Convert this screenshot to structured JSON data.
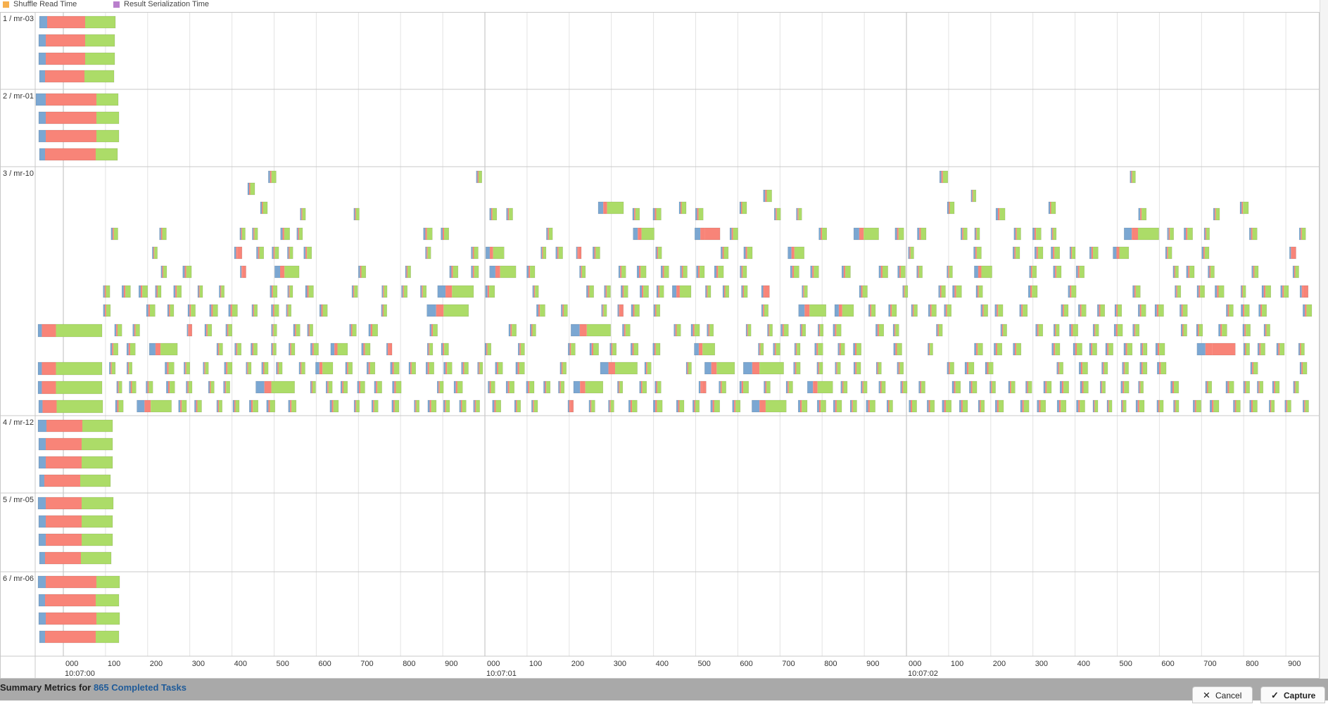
{
  "legend": [
    {
      "label": "Shuffle Read Time",
      "color": "#f6b04e"
    },
    {
      "label": "Result Serialization Time",
      "color": "#b97fcc"
    }
  ],
  "executors": [
    {
      "label": "1 / mr-03"
    },
    {
      "label": "2 / mr-01"
    },
    {
      "label": "3 / mr-10"
    },
    {
      "label": "4 / mr-12"
    },
    {
      "label": "5 / mr-05"
    },
    {
      "label": "6 / mr-06"
    }
  ],
  "axis": {
    "tick_labels": [
      "000",
      "100",
      "200",
      "300",
      "400",
      "500",
      "600",
      "700",
      "800",
      "900",
      "000",
      "100",
      "200",
      "300",
      "400",
      "500",
      "600",
      "700",
      "800",
      "900",
      "000",
      "100",
      "200",
      "300",
      "400",
      "500",
      "600",
      "700",
      "800",
      "900"
    ],
    "major_labels": [
      "10:07:00",
      "10:07:01",
      "10:07:02"
    ]
  },
  "colors": {
    "scheduler_delay": "#7ba7d2",
    "executor_computing": "#f88478",
    "getting_result": "#acdc68",
    "grid": "#e3e3e3",
    "major_grid": "#bdbdbd",
    "row_border": "#c8c8c8"
  },
  "summary": {
    "prefix": "Summary Metrics for ",
    "link": "865 Completed Tasks"
  },
  "buttons": {
    "cancel_icon": "close-icon",
    "cancel_label": "Cancel",
    "capture_icon": "check-icon",
    "capture_label": "Capture"
  }
}
